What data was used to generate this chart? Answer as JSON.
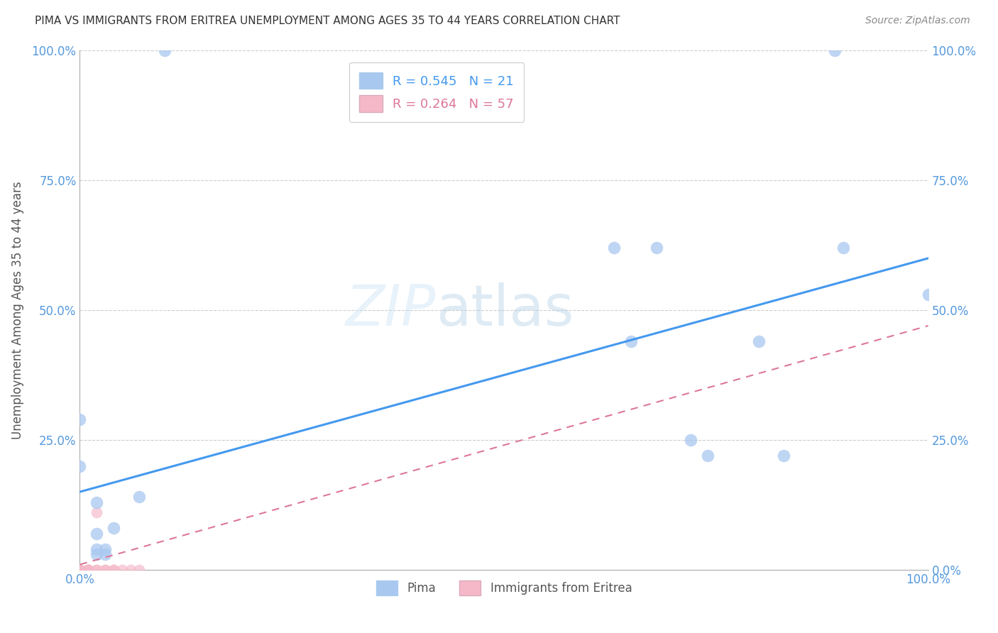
{
  "title": "PIMA VS IMMIGRANTS FROM ERITREA UNEMPLOYMENT AMONG AGES 35 TO 44 YEARS CORRELATION CHART",
  "source": "Source: ZipAtlas.com",
  "ylabel": "Unemployment Among Ages 35 to 44 years",
  "xlim": [
    0,
    1.0
  ],
  "ylim": [
    0,
    1.0
  ],
  "pima_R": "0.545",
  "pima_N": "21",
  "eritrea_R": "0.264",
  "eritrea_N": "57",
  "pima_color": "#a8c8f0",
  "eritrea_color": "#f4b8c8",
  "pima_line_color": "#4499ee",
  "eritrea_line_color": "#dd7799",
  "legend_pima": "Pima",
  "legend_eritrea": "Immigrants from Eritrea",
  "watermark": "ZIPatlas",
  "pima_points": [
    [
      0.0,
      0.29
    ],
    [
      0.0,
      0.2
    ],
    [
      0.02,
      0.13
    ],
    [
      0.02,
      0.07
    ],
    [
      0.02,
      0.04
    ],
    [
      0.02,
      0.03
    ],
    [
      0.03,
      0.04
    ],
    [
      0.03,
      0.03
    ],
    [
      0.04,
      0.08
    ],
    [
      0.07,
      0.14
    ],
    [
      0.1,
      1.0
    ],
    [
      0.63,
      0.62
    ],
    [
      0.65,
      0.44
    ],
    [
      0.68,
      0.62
    ],
    [
      0.72,
      0.25
    ],
    [
      0.74,
      0.22
    ],
    [
      0.8,
      0.44
    ],
    [
      0.83,
      0.22
    ],
    [
      0.89,
      1.0
    ],
    [
      0.9,
      0.62
    ],
    [
      1.0,
      0.53
    ]
  ],
  "eritrea_points": [
    [
      0.0,
      0.0
    ],
    [
      0.0,
      0.0
    ],
    [
      0.0,
      0.0
    ],
    [
      0.0,
      0.0
    ],
    [
      0.0,
      0.0
    ],
    [
      0.0,
      0.0
    ],
    [
      0.0,
      0.0
    ],
    [
      0.0,
      0.0
    ],
    [
      0.0,
      0.0
    ],
    [
      0.0,
      0.0
    ],
    [
      0.0,
      0.0
    ],
    [
      0.0,
      0.0
    ],
    [
      0.0,
      0.0
    ],
    [
      0.0,
      0.0
    ],
    [
      0.0,
      0.0
    ],
    [
      0.0,
      0.0
    ],
    [
      0.0,
      0.0
    ],
    [
      0.0,
      0.0
    ],
    [
      0.0,
      0.0
    ],
    [
      0.0,
      0.0
    ],
    [
      0.0,
      0.0
    ],
    [
      0.0,
      0.0
    ],
    [
      0.0,
      0.0
    ],
    [
      0.0,
      0.0
    ],
    [
      0.0,
      0.0
    ],
    [
      0.0,
      0.0
    ],
    [
      0.0,
      0.0
    ],
    [
      0.0,
      0.0
    ],
    [
      0.0,
      0.0
    ],
    [
      0.0,
      0.0
    ],
    [
      0.0,
      0.0
    ],
    [
      0.0,
      0.0
    ],
    [
      0.0,
      0.0
    ],
    [
      0.0,
      0.0
    ],
    [
      0.0,
      0.0
    ],
    [
      0.0,
      0.0
    ],
    [
      0.0,
      0.0
    ],
    [
      0.0,
      0.0
    ],
    [
      0.0,
      0.0
    ],
    [
      0.0,
      0.0
    ],
    [
      0.0,
      0.0
    ],
    [
      0.0,
      0.0
    ],
    [
      0.0,
      0.0
    ],
    [
      0.01,
      0.0
    ],
    [
      0.01,
      0.0
    ],
    [
      0.01,
      0.0
    ],
    [
      0.01,
      0.0
    ],
    [
      0.02,
      0.0
    ],
    [
      0.02,
      0.0
    ],
    [
      0.02,
      0.11
    ],
    [
      0.03,
      0.0
    ],
    [
      0.03,
      0.0
    ],
    [
      0.04,
      0.0
    ],
    [
      0.04,
      0.0
    ],
    [
      0.05,
      0.0
    ],
    [
      0.06,
      0.0
    ],
    [
      0.07,
      0.0
    ]
  ],
  "pima_line": [
    0.0,
    0.15,
    1.0,
    0.6
  ],
  "eritrea_line": [
    0.0,
    0.01,
    1.0,
    0.47
  ]
}
